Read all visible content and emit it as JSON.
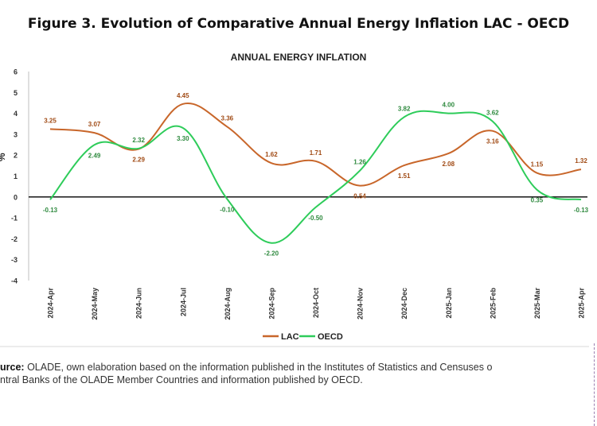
{
  "figure_title": "Figure 3. Evolution of Comparative Annual Energy Inflation LAC - OECD",
  "source": {
    "label": "urce:",
    "line1": "OLADE, own elaboration based on the information published in the Institutes of Statistics and Censuses o",
    "line2": "ntral Banks of the OLADE Member Countries and information published by OECD."
  },
  "chart_data": {
    "type": "line",
    "title": "ANNUAL ENERGY INFLATION",
    "xlabel": "",
    "ylabel": "%",
    "ylim": [
      -4,
      6
    ],
    "yticks": [
      -4,
      -3,
      -2,
      -1,
      0,
      1,
      2,
      3,
      4,
      5,
      6
    ],
    "categories": [
      "2024-Apr",
      "2024-May",
      "2024-Jun",
      "2024-Jul",
      "2024-Aug",
      "2024-Sep",
      "2024-Oct",
      "2024-Nov",
      "2024-Dec",
      "2025-Jan",
      "2025-Feb",
      "2025-Mar",
      "2025-Apr"
    ],
    "series": [
      {
        "name": "LAC",
        "color": "#c8662a",
        "values": [
          3.25,
          3.07,
          2.29,
          4.45,
          3.36,
          1.62,
          1.71,
          0.54,
          1.51,
          2.08,
          3.16,
          1.15,
          1.32
        ],
        "labels": [
          "3.25",
          "3.07",
          "2.29",
          "4.45",
          "3.36",
          "1.62",
          "1.71",
          "0.54",
          "1.51",
          "2.08",
          "3.16",
          "1.15",
          "1.32"
        ]
      },
      {
        "name": "OECD",
        "color": "#2ecc5a",
        "values": [
          -0.13,
          2.49,
          2.32,
          3.3,
          -0.1,
          -2.2,
          -0.5,
          1.26,
          3.82,
          4.0,
          3.62,
          0.35,
          -0.13
        ],
        "labels": [
          "-0.13",
          "2.49",
          "2.32",
          "3.30",
          "-0.10",
          "-2.20",
          "-0.50",
          "1.26",
          "3.82",
          "4.00",
          "3.62",
          "0.35",
          "-0.13"
        ]
      }
    ],
    "legend_position": "bottom",
    "grid": false
  }
}
